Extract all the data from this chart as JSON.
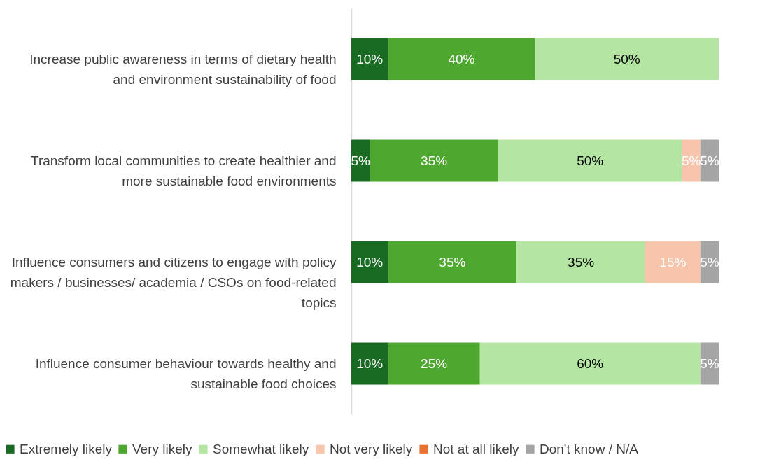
{
  "chart_data": {
    "type": "bar",
    "orientation": "horizontal",
    "stacked": true,
    "categories": [
      "Increase public awareness in terms of dietary health and environment sustainability of food",
      "Transform local communities to create healthier and more sustainable food environments",
      "Influence consumers and citizens to engage with policy makers / businesses/ academia / CSOs on food-related topics",
      "Influence consumer behaviour towards healthy and sustainable food choices"
    ],
    "series": [
      {
        "name": "Extremely likely",
        "color": "#196b24",
        "values": [
          10,
          5,
          10,
          10
        ],
        "value_labels": [
          "10%",
          "5%",
          "10%",
          "10%"
        ]
      },
      {
        "name": "Very likely",
        "color": "#4ea72e",
        "values": [
          40,
          35,
          35,
          25
        ],
        "value_labels": [
          "40%",
          "35%",
          "35%",
          "25%"
        ]
      },
      {
        "name": "Somewhat likely",
        "color": "#b4e5a2",
        "values": [
          50,
          50,
          35,
          60
        ],
        "value_labels": [
          "50%",
          "50%",
          "35%",
          "60%"
        ]
      },
      {
        "name": "Not very likely",
        "color": "#f6c5ac",
        "values": [
          0,
          5,
          15,
          0
        ],
        "value_labels": [
          null,
          "5%",
          "15%",
          null
        ]
      },
      {
        "name": "Not at all likely",
        "color": "#e97132",
        "values": [
          0,
          0,
          0,
          0
        ],
        "value_labels": [
          null,
          null,
          null,
          null
        ]
      },
      {
        "name": "Don't know / N/A",
        "color": "#a5a5a5",
        "values": [
          0,
          5,
          5,
          5
        ],
        "value_labels": [
          null,
          "5%",
          "5%",
          "5%"
        ]
      }
    ],
    "xlim": [
      0,
      100
    ],
    "tick_labels": "y",
    "legend": "bottom"
  }
}
